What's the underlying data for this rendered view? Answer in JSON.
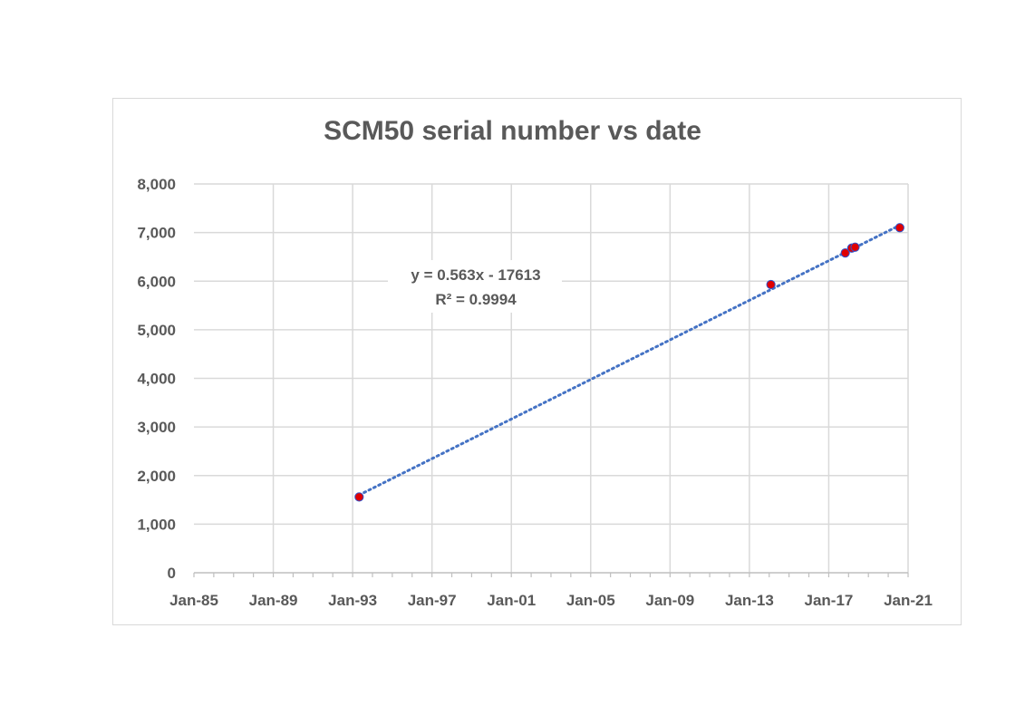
{
  "chart_data": {
    "type": "scatter",
    "title": "SCM50 serial number vs date",
    "xlabel": "",
    "ylabel": "",
    "x_axis_type": "date",
    "xlim": [
      "1985-01-01",
      "2021-01-01"
    ],
    "ylim": [
      0,
      8000
    ],
    "y_ticks": [
      0,
      1000,
      2000,
      3000,
      4000,
      5000,
      6000,
      7000,
      8000
    ],
    "y_tick_labels": [
      "0",
      "1,000",
      "2,000",
      "3,000",
      "4,000",
      "5,000",
      "6,000",
      "7,000",
      "8,000"
    ],
    "x_ticks": [
      "1985-01-01",
      "1989-01-01",
      "1993-01-01",
      "1997-01-01",
      "2001-01-01",
      "2005-01-01",
      "2009-01-01",
      "2013-01-01",
      "2017-01-01",
      "2021-01-01"
    ],
    "x_tick_labels": [
      "Jan-85",
      "Jan-89",
      "Jan-93",
      "Jan-97",
      "Jan-01",
      "Jan-05",
      "Jan-09",
      "Jan-13",
      "Jan-17",
      "Jan-21"
    ],
    "grid": true,
    "point_color": "#e00000",
    "point_edge_color": "#3355cc",
    "trendline_color": "#4472c4",
    "series": [
      {
        "points": [
          {
            "x": "1993-05-01",
            "y": 1560
          },
          {
            "x": "2014-02-01",
            "y": 5930
          },
          {
            "x": "2017-11-01",
            "y": 6580
          },
          {
            "x": "2018-03-01",
            "y": 6680
          },
          {
            "x": "2018-05-01",
            "y": 6700
          },
          {
            "x": "2020-08-01",
            "y": 7100
          }
        ]
      }
    ],
    "trendline": {
      "type": "linear",
      "style": "dotted",
      "start": {
        "x": "1993-05-01",
        "y": 1600
      },
      "end": {
        "x": "2020-08-01",
        "y": 7150
      },
      "equation": "y = 0.563x - 17613",
      "r_squared": "R² = 0.9994"
    }
  }
}
